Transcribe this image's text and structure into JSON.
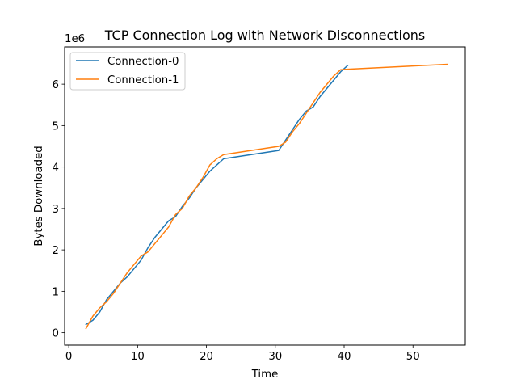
{
  "chart_data": {
    "type": "line",
    "title": "TCP Connection Log with Network Disconnections",
    "xlabel": "Time",
    "ylabel": "Bytes Downloaded",
    "y_offset_label": "1e6",
    "xlim": [
      -0.6,
      57.6
    ],
    "ylim": [
      -300000,
      6900000
    ],
    "xticks": [
      0,
      10,
      20,
      30,
      40,
      50
    ],
    "yticks": [
      0,
      1000000,
      2000000,
      3000000,
      4000000,
      5000000,
      6000000
    ],
    "ytick_labels": [
      "0",
      "1",
      "2",
      "3",
      "4",
      "5",
      "6"
    ],
    "grid": false,
    "legend": "top-left",
    "series": [
      {
        "name": "Connection-0",
        "color": "#1f77b4",
        "x": [
          2.5,
          3.5,
          4.5,
          5.5,
          6.5,
          7.5,
          8.5,
          9.5,
          10.5,
          11.5,
          12.5,
          13.5,
          14.5,
          15.5,
          16.5,
          17.5,
          18.5,
          19.5,
          20.5,
          21.5,
          22.5,
          30.5,
          31.5,
          32.5,
          33.5,
          34.5,
          35.5,
          36.5,
          37.5,
          38.5,
          39.5,
          40.5
        ],
        "y": [
          200000,
          300000,
          500000,
          800000,
          1000000,
          1200000,
          1350000,
          1550000,
          1750000,
          2050000,
          2300000,
          2500000,
          2700000,
          2800000,
          3050000,
          3250000,
          3500000,
          3700000,
          3900000,
          4050000,
          4200000,
          4400000,
          4650000,
          4900000,
          5150000,
          5350000,
          5450000,
          5700000,
          5900000,
          6100000,
          6300000,
          6450000
        ]
      },
      {
        "name": "Connection-1",
        "color": "#ff7f0e",
        "x": [
          2.5,
          3.5,
          4.5,
          5.5,
          6.5,
          7.5,
          8.5,
          9.5,
          10.5,
          11.5,
          12.5,
          13.5,
          14.5,
          15.5,
          16.5,
          17.5,
          18.5,
          19.5,
          20.5,
          21.5,
          22.5,
          30.5,
          31.5,
          32.5,
          33.5,
          34.5,
          35.5,
          36.5,
          37.5,
          38.5,
          39.5,
          40.5,
          55.0
        ],
        "y": [
          100000,
          400000,
          600000,
          750000,
          950000,
          1200000,
          1450000,
          1650000,
          1850000,
          1950000,
          2150000,
          2350000,
          2550000,
          2850000,
          3000000,
          3300000,
          3500000,
          3750000,
          4050000,
          4200000,
          4300000,
          4500000,
          4600000,
          4850000,
          5050000,
          5300000,
          5550000,
          5800000,
          6000000,
          6200000,
          6350000,
          6360000,
          6480000
        ]
      }
    ]
  }
}
